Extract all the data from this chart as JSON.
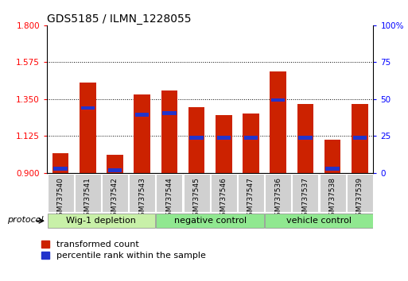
{
  "title": "GDS5185 / ILMN_1228055",
  "samples": [
    "GSM737540",
    "GSM737541",
    "GSM737542",
    "GSM737543",
    "GSM737544",
    "GSM737545",
    "GSM737546",
    "GSM737547",
    "GSM737536",
    "GSM737537",
    "GSM737538",
    "GSM737539"
  ],
  "bar_heights": [
    1.02,
    1.45,
    1.01,
    1.38,
    1.4,
    1.3,
    1.25,
    1.26,
    1.52,
    1.32,
    1.1,
    1.32
  ],
  "blue_positions": [
    0.925,
    1.295,
    0.915,
    1.255,
    1.265,
    1.115,
    1.115,
    1.115,
    1.345,
    1.115,
    0.925,
    1.115
  ],
  "groups": [
    {
      "label": "Wig-1 depletion",
      "start": 0,
      "end": 4
    },
    {
      "label": "negative control",
      "start": 4,
      "end": 8
    },
    {
      "label": "vehicle control",
      "start": 8,
      "end": 12
    }
  ],
  "group_colors": [
    "#c8f0a8",
    "#90e890",
    "#90e890"
  ],
  "ylim_left": [
    0.9,
    1.8
  ],
  "yticks_left": [
    0.9,
    1.125,
    1.35,
    1.575,
    1.8
  ],
  "ylim_right": [
    0,
    100
  ],
  "yticks_right": [
    0,
    25,
    50,
    75,
    100
  ],
  "bar_color": "#cc2200",
  "blue_color": "#2233cc",
  "bar_width": 0.6,
  "baseline": 0.9,
  "sample_box_color": "#d0d0d0",
  "legend_red": "transformed count",
  "legend_blue": "percentile rank within the sample",
  "protocol_label": "protocol",
  "title_fontsize": 10,
  "tick_fontsize": 7.5,
  "sample_fontsize": 6.5,
  "group_fontsize": 8
}
